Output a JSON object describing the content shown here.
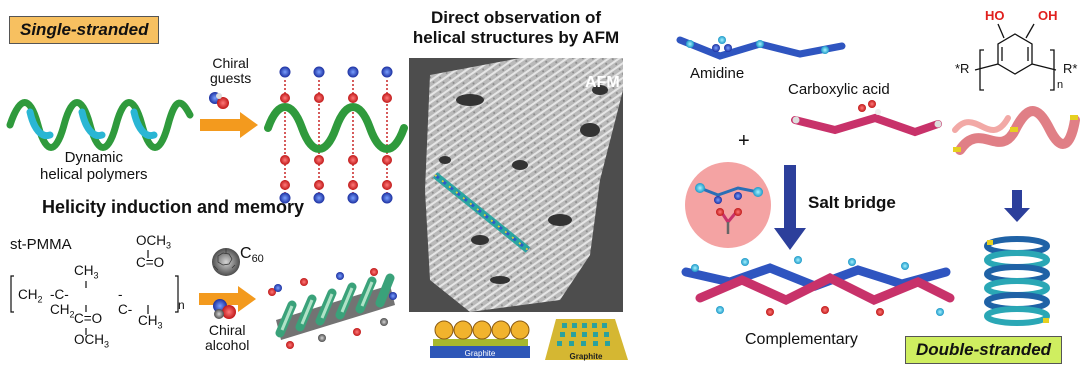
{
  "panels": {
    "single": {
      "tag": "Single-stranded",
      "chiral_guests": [
        "Chiral",
        "guests"
      ],
      "dynamic_polymers": [
        "Dynamic",
        "helical polymers"
      ],
      "helicity_title": "Helicity induction and memory",
      "pmma_label": "st-PMMA",
      "c60_label": "C",
      "c60_sub": "60",
      "chiral_alcohol": [
        "Chiral",
        "alcohol"
      ],
      "formula": {
        "och3_top": "OCH",
        "och3_top_sub": "3",
        "co_top": "C=O",
        "ch3_left": "CH",
        "ch3_left_sub": "3",
        "backbone": "CH",
        "backbone_sub": "2",
        "c_left": "-C-CH",
        "c_left_sub": "2",
        "c_right": "-C-",
        "n": "n",
        "co_bottom": "C=O",
        "och3_bottom": "OCH",
        "och3_bottom_sub": "3",
        "ch3_right": "CH",
        "ch3_right_sub": "3"
      }
    },
    "afm": {
      "title": [
        "Direct observation of",
        "helical structures by AFM"
      ],
      "image_label": "AFM",
      "graphite_left": "Graphite",
      "graphite_right": "Graphite"
    },
    "double": {
      "amidine": "Amidine",
      "plus": "+",
      "carboxylic": "Carboxylic acid",
      "salt_bridge": "Salt bridge",
      "complementary": "Complementary",
      "tag": "Double-stranded",
      "ho_left": "HO",
      "oh_right": "OH",
      "r_left": "*R",
      "r_right": "R*",
      "n": "n"
    }
  },
  "colors": {
    "tag_bg_orange": "#f7c060",
    "tag_bg_green": "#cfee60",
    "arrow_orange": "#f39a1e",
    "arrow_blue": "#2c3f9b",
    "helix_green": "#2f9a3c",
    "helix_cyan": "#26b2d0",
    "strand_blue": "#2f55c0",
    "strand_pink": "#c8326a",
    "salt_circle": "#f4a3a3"
  }
}
